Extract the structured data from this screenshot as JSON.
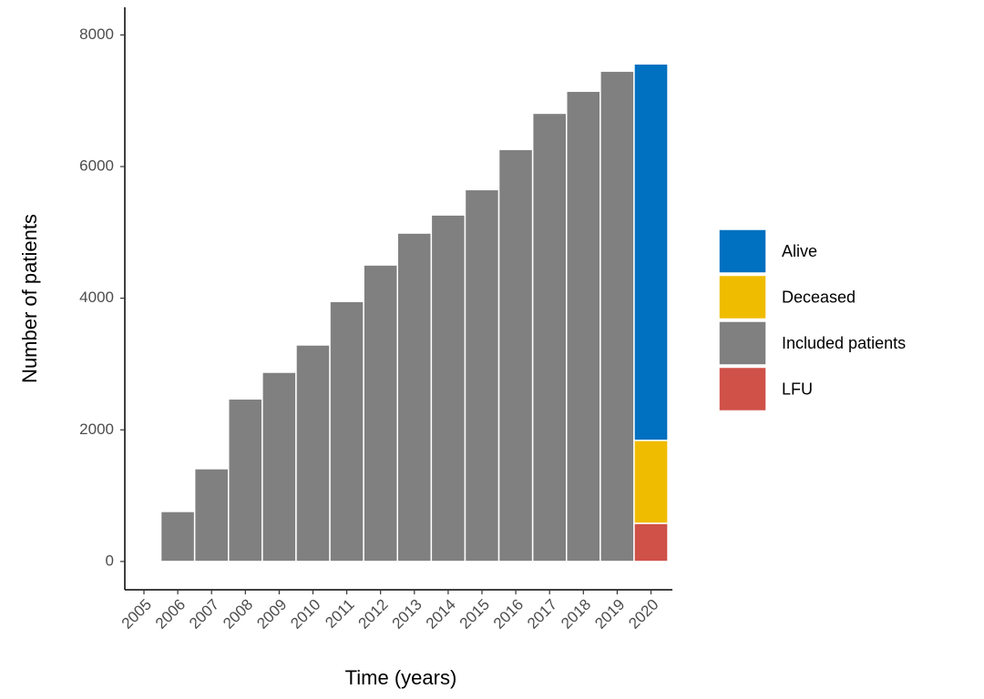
{
  "chart_data": {
    "type": "stacked_bar",
    "x_label": "Time (years)",
    "y_label": "Number of patients",
    "categories": [
      "2005",
      "2006",
      "2007",
      "2008",
      "2009",
      "2010",
      "2011",
      "2012",
      "2013",
      "2014",
      "2015",
      "2016",
      "2017",
      "2018",
      "2019",
      "2020"
    ],
    "series": [
      {
        "name": "Alive",
        "color": "#0070c0",
        "values": [
          null,
          null,
          null,
          null,
          null,
          null,
          null,
          null,
          null,
          null,
          null,
          null,
          null,
          null,
          null,
          5720
        ]
      },
      {
        "name": "Deceased",
        "color": "#f0bc00",
        "values": [
          null,
          null,
          null,
          null,
          null,
          null,
          null,
          null,
          null,
          null,
          null,
          null,
          null,
          null,
          null,
          1260
        ]
      },
      {
        "name": "Included patients",
        "color": "#808080",
        "values": [
          null,
          760,
          1410,
          2470,
          2875,
          3290,
          3950,
          4505,
          4990,
          5265,
          5650,
          6260,
          6810,
          7145,
          7450,
          null
        ]
      },
      {
        "name": "LFU",
        "color": "#cf5148",
        "values": [
          null,
          null,
          null,
          null,
          null,
          null,
          null,
          null,
          null,
          null,
          null,
          null,
          null,
          null,
          null,
          580
        ]
      }
    ],
    "ylim": [
      -430,
      8420
    ],
    "yticks": [
      0,
      2000,
      4000,
      6000,
      8000
    ],
    "grid": false,
    "legend": "right"
  }
}
